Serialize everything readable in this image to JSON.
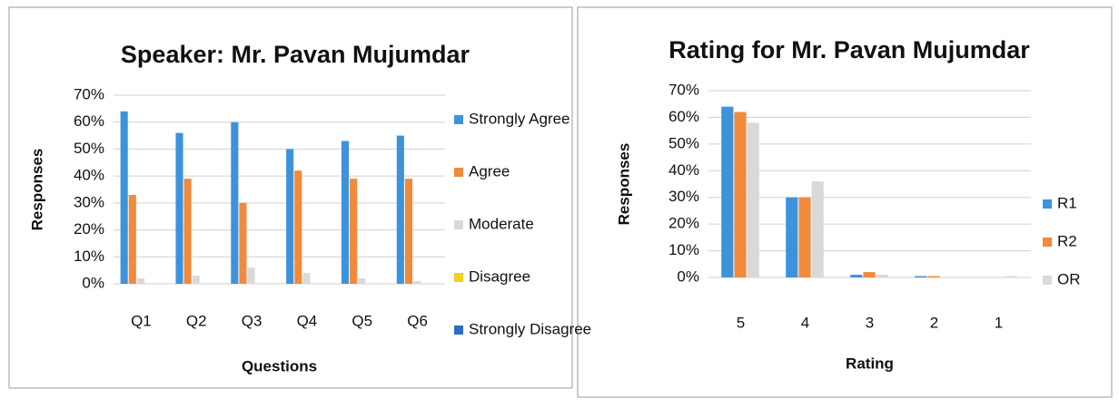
{
  "chart_data": [
    {
      "type": "bar",
      "title": "Speaker: Mr. Pavan Mujumdar",
      "x_label": "Questions",
      "y_label": "Responses",
      "categories": [
        "Q1",
        "Q2",
        "Q3",
        "Q4",
        "Q5",
        "Q6"
      ],
      "series": [
        {
          "name": "Strongly Agree",
          "color": "#3d93db",
          "values": [
            64,
            56,
            60,
            50,
            53,
            55
          ]
        },
        {
          "name": "Agree",
          "color": "#f08a3c",
          "values": [
            33,
            39,
            30,
            42,
            39,
            39
          ]
        },
        {
          "name": "Moderate",
          "color": "#d9d9d9",
          "values": [
            2,
            3,
            6,
            4,
            2,
            1
          ]
        },
        {
          "name": "Disagree",
          "color": "#f2d01f",
          "values": [
            0,
            0,
            0,
            0,
            0,
            0
          ]
        },
        {
          "name": "Strongly Disagree",
          "color": "#2a6fc2",
          "values": [
            0,
            0,
            0,
            0,
            0,
            0
          ]
        }
      ],
      "ylim": [
        0,
        70
      ],
      "yticks": [
        {
          "value": 0,
          "label": "0%"
        },
        {
          "value": 10,
          "label": "10%"
        },
        {
          "value": 20,
          "label": "20%"
        },
        {
          "value": 30,
          "label": "30%"
        },
        {
          "value": 40,
          "label": "40%"
        },
        {
          "value": 50,
          "label": "50%"
        },
        {
          "value": 60,
          "label": "60%"
        },
        {
          "value": 70,
          "label": "70%"
        }
      ],
      "grid": true,
      "legend": "right"
    },
    {
      "type": "bar",
      "title": "Rating for Mr. Pavan Mujumdar",
      "x_label": "Rating",
      "y_label": "Responses",
      "categories": [
        "5",
        "4",
        "3",
        "2",
        "1"
      ],
      "series": [
        {
          "name": "R1",
          "color": "#3d93db",
          "values": [
            64,
            30,
            1,
            0.5,
            0
          ]
        },
        {
          "name": "R2",
          "color": "#f08a3c",
          "values": [
            62,
            30,
            2,
            0.5,
            0
          ]
        },
        {
          "name": "OR",
          "color": "#d9d9d9",
          "values": [
            58,
            36,
            1,
            0,
            0.5
          ]
        }
      ],
      "ylim": [
        0,
        70
      ],
      "yticks": [
        {
          "value": 0,
          "label": "0%"
        },
        {
          "value": 10,
          "label": "10%"
        },
        {
          "value": 20,
          "label": "20%"
        },
        {
          "value": 30,
          "label": "30%"
        },
        {
          "value": 40,
          "label": "40%"
        },
        {
          "value": 50,
          "label": "50%"
        },
        {
          "value": 60,
          "label": "60%"
        },
        {
          "value": 70,
          "label": "70%"
        }
      ],
      "grid": true,
      "legend": "right"
    }
  ]
}
